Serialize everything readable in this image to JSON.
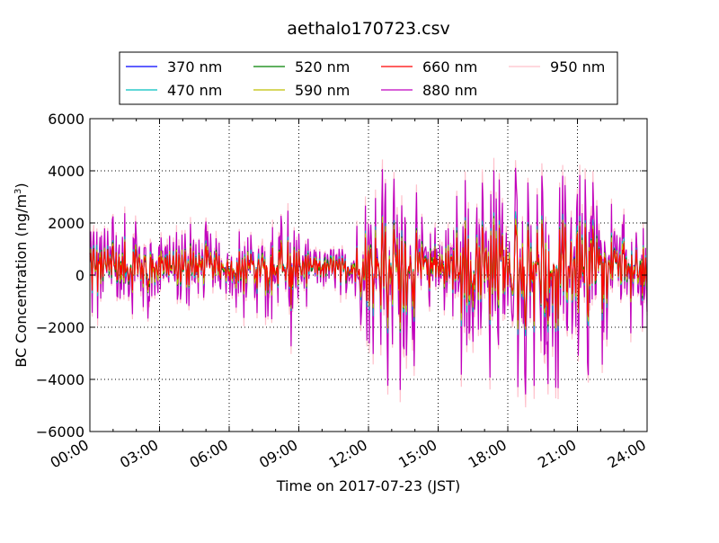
{
  "chart_data": {
    "type": "line",
    "title": "aethalo170723.csv",
    "xlabel": "Time on 2017-07-23 (JST)",
    "ylabel": "BC Concentration (ng/m³)",
    "ylabel_main": "BC Concentration (ng/m",
    "ylabel_sup": "3",
    "ylabel_close": ")",
    "xlim": [
      "00:00",
      "24:00"
    ],
    "ylim": [
      -6000,
      6000
    ],
    "grid": true,
    "legend_position": "top",
    "x_ticks": [
      {
        "hour": 0,
        "label": "00:00"
      },
      {
        "hour": 3,
        "label": "03:00"
      },
      {
        "hour": 6,
        "label": "06:00"
      },
      {
        "hour": 9,
        "label": "09:00"
      },
      {
        "hour": 12,
        "label": "12:00"
      },
      {
        "hour": 15,
        "label": "15:00"
      },
      {
        "hour": 18,
        "label": "18:00"
      },
      {
        "hour": 21,
        "label": "21:00"
      },
      {
        "hour": 24,
        "label": "24:00"
      }
    ],
    "y_ticks": [
      {
        "value": -6000,
        "label": "−6000"
      },
      {
        "value": -4000,
        "label": "−4000"
      },
      {
        "value": -2000,
        "label": "−2000"
      },
      {
        "value": 0,
        "label": "0"
      },
      {
        "value": 2000,
        "label": "2000"
      },
      {
        "value": 4000,
        "label": "4000"
      },
      {
        "value": 6000,
        "label": "6000"
      }
    ],
    "series": [
      {
        "name": "370 nm",
        "color": "#0000ff",
        "amp_scale": 0.45
      },
      {
        "name": "470 nm",
        "color": "#00bfbf",
        "amp_scale": 0.55
      },
      {
        "name": "520 nm",
        "color": "#008000",
        "amp_scale": 0.5
      },
      {
        "name": "590 nm",
        "color": "#bfbf00",
        "amp_scale": 0.5
      },
      {
        "name": "660 nm",
        "color": "#ff0000",
        "amp_scale": 0.45
      },
      {
        "name": "880 nm",
        "color": "#bf00bf",
        "amp_scale": 1.0
      },
      {
        "name": "950 nm",
        "color": "#ffc0cb",
        "amp_scale": 1.1
      }
    ],
    "envelope": [
      {
        "hour": 0,
        "peak": 2500
      },
      {
        "hour": 1.5,
        "peak": 2400
      },
      {
        "hour": 3,
        "peak": 1500
      },
      {
        "hour": 4.5,
        "peak": 2000
      },
      {
        "hour": 6,
        "peak": 1500
      },
      {
        "hour": 7.5,
        "peak": 1700
      },
      {
        "hour": 8.5,
        "peak": 2800
      },
      {
        "hour": 9.5,
        "peak": 1200
      },
      {
        "hour": 11,
        "peak": 800
      },
      {
        "hour": 12,
        "peak": 3500
      },
      {
        "hour": 13.5,
        "peak": 4300
      },
      {
        "hour": 15,
        "peak": 1500
      },
      {
        "hour": 16,
        "peak": 4200
      },
      {
        "hour": 17,
        "peak": 4000
      },
      {
        "hour": 18,
        "peak": 4600
      },
      {
        "hour": 19.5,
        "peak": 3800
      },
      {
        "hour": 21,
        "peak": 4200
      },
      {
        "hour": 22.5,
        "peak": 2800
      },
      {
        "hour": 24,
        "peak": 2200
      }
    ]
  }
}
